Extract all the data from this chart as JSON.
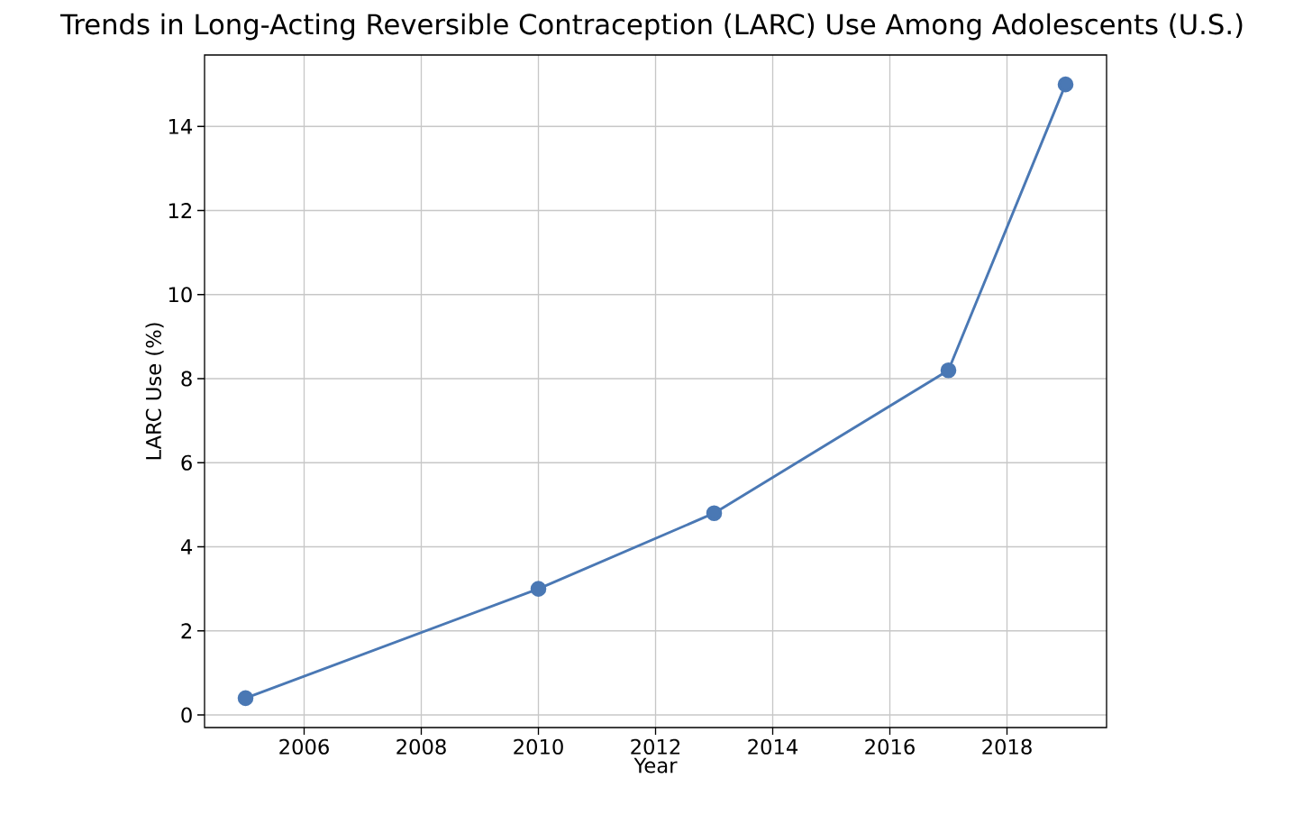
{
  "chart_data": {
    "type": "line",
    "title": "Trends in Long-Acting Reversible Contraception (LARC) Use Among Adolescents (U.S.)",
    "xlabel": "Year",
    "ylabel": "LARC Use (%)",
    "x": [
      2005,
      2010,
      2013,
      2017,
      2019
    ],
    "series": [
      {
        "color": "#4a78b4",
        "values": [
          0.4,
          3.0,
          4.8,
          8.2,
          15.0
        ]
      }
    ],
    "xlim": [
      2004.3,
      2019.7
    ],
    "ylim": [
      -0.3,
      15.7
    ],
    "xticks": [
      2006,
      2008,
      2010,
      2012,
      2014,
      2016,
      2018
    ],
    "yticks": [
      0,
      2,
      4,
      6,
      8,
      10,
      12,
      14
    ],
    "grid": true,
    "marker": "circle",
    "line_style": "solid"
  }
}
